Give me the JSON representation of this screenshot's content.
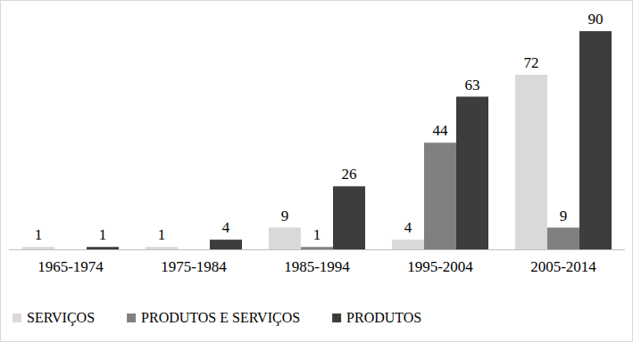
{
  "chart_data": {
    "type": "bar",
    "categories": [
      "1965-1974",
      "1975-1984",
      "1985-1994",
      "1995-2004",
      "2005-2014"
    ],
    "series": [
      {
        "name": "SERVIÇOS",
        "color": "#d9d9d9",
        "values": [
          1,
          1,
          9,
          4,
          72
        ]
      },
      {
        "name": "PRODUTOS E SERVIÇOS",
        "color": "#808080",
        "values": [
          null,
          null,
          1,
          44,
          9
        ]
      },
      {
        "name": "PRODUTOS",
        "color": "#3d3d3d",
        "values": [
          1,
          4,
          26,
          63,
          90
        ]
      }
    ],
    "ylim": [
      0,
      90
    ],
    "grid": false,
    "legend": "bottom",
    "data_labels": true,
    "tick_labels": "x"
  }
}
